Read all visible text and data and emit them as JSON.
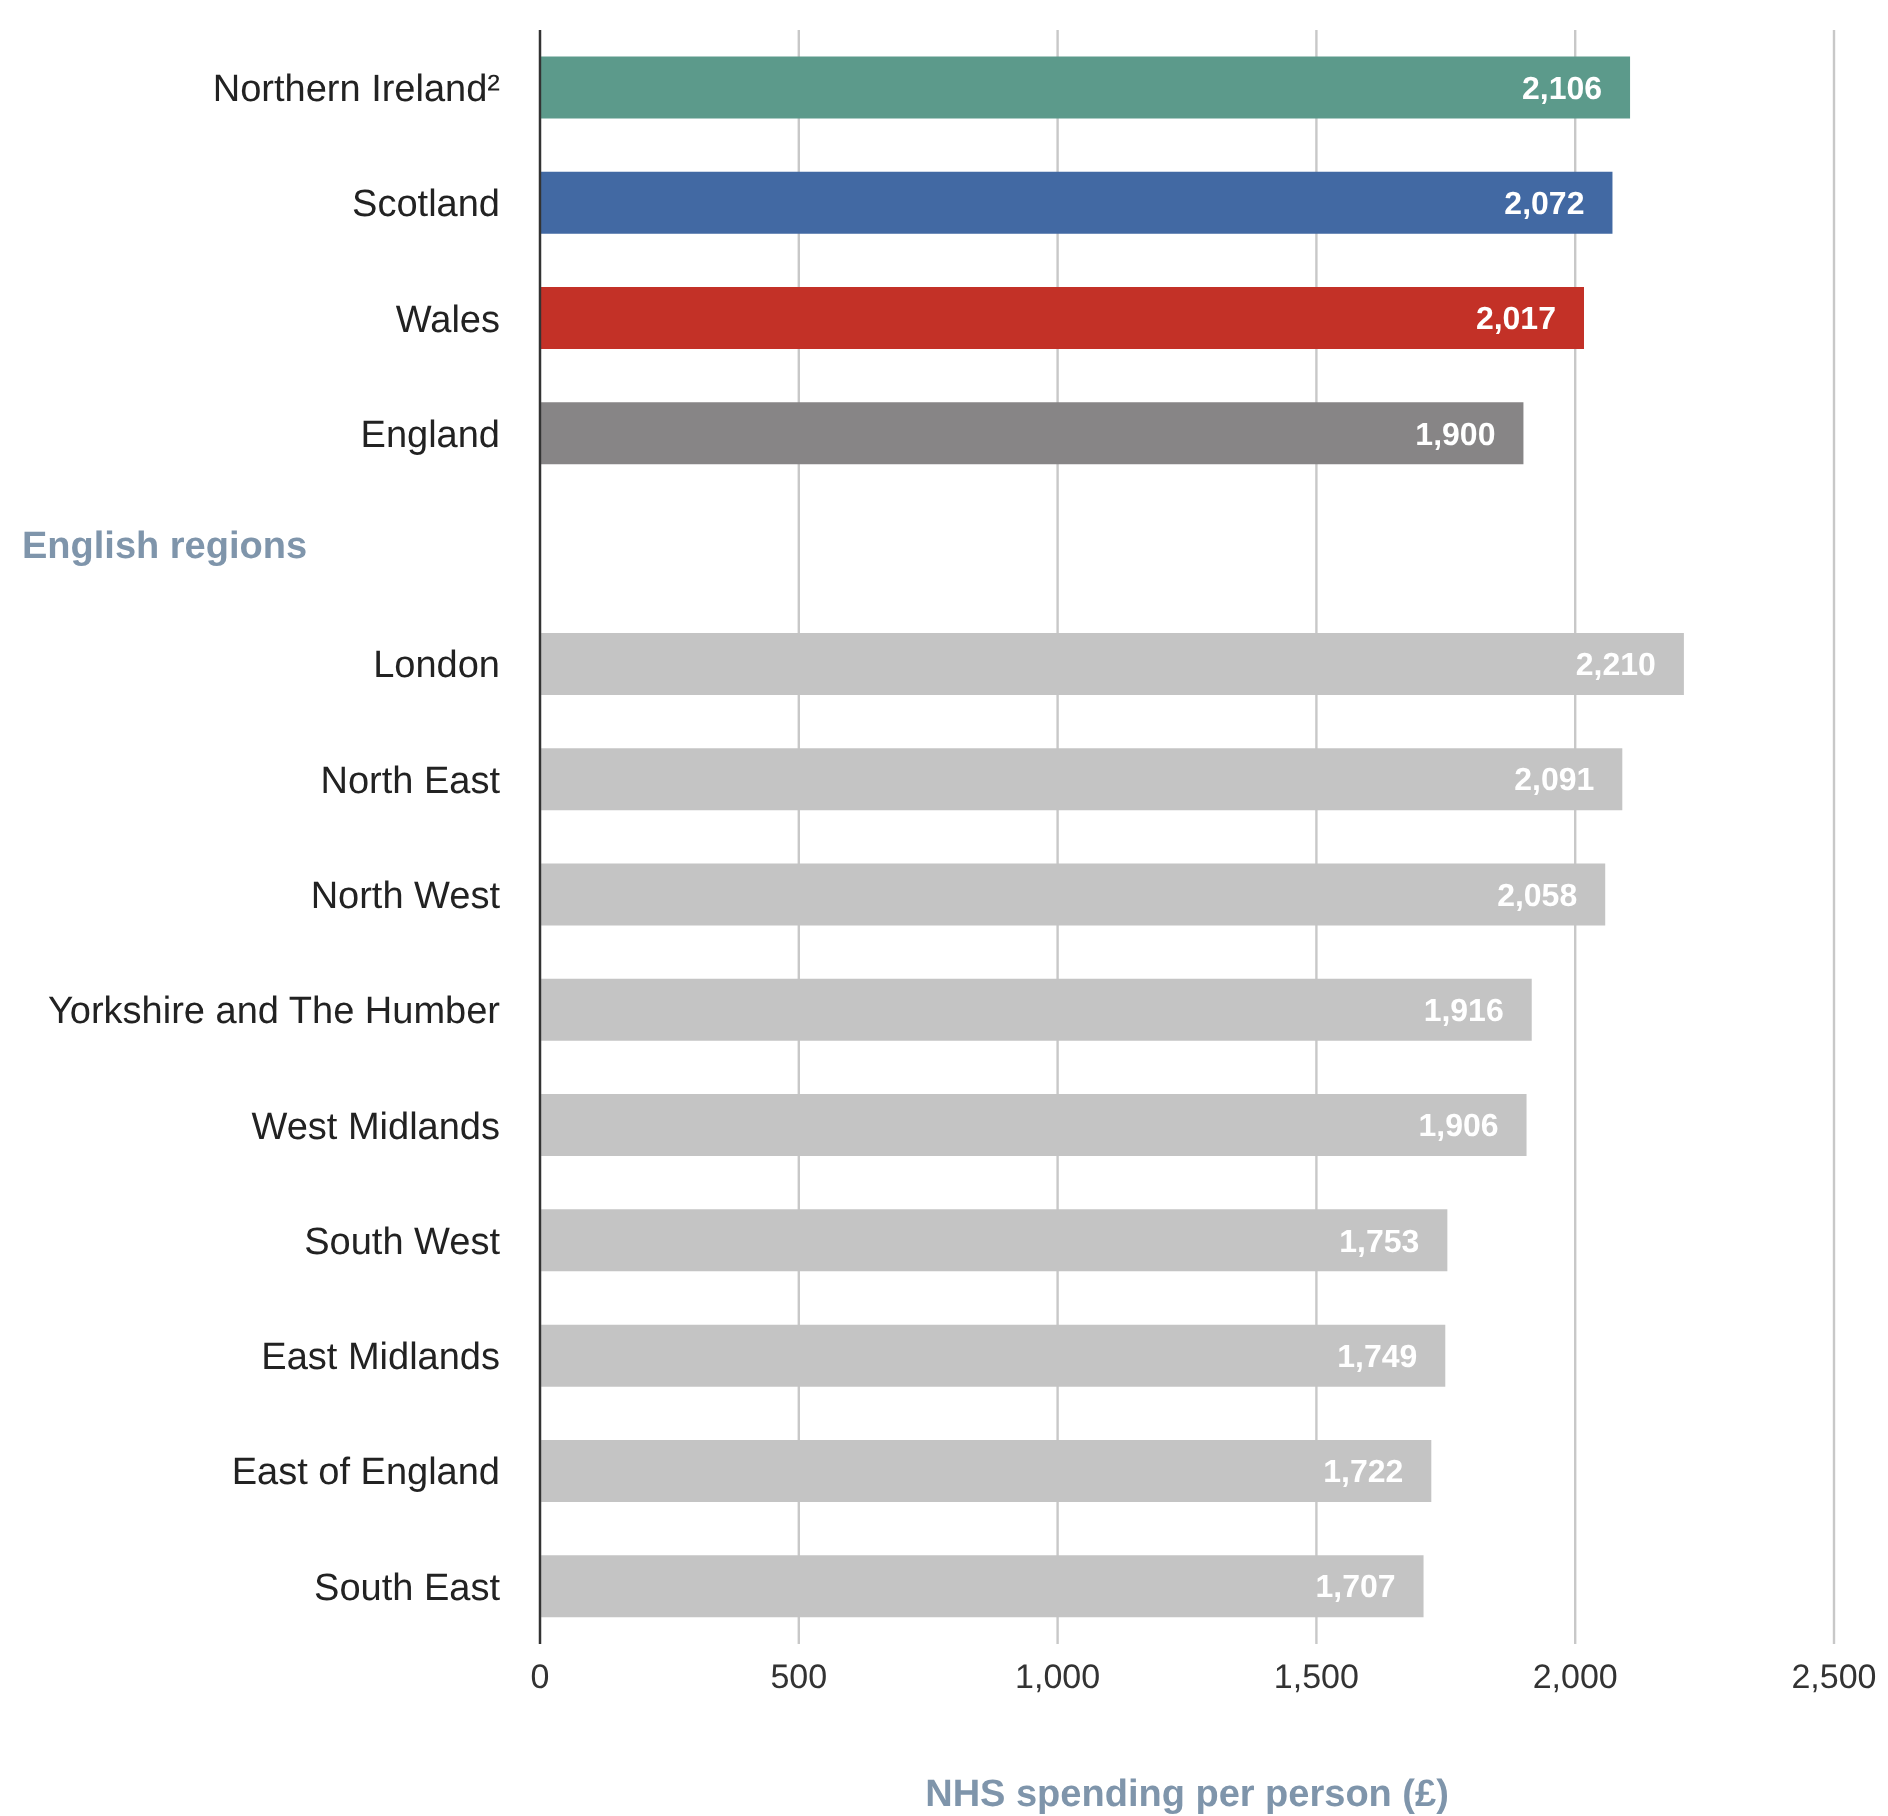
{
  "chart_data": {
    "type": "bar",
    "orientation": "horizontal",
    "categories": [
      "Northern Ireland²",
      "Scotland",
      "Wales",
      "England",
      null,
      "London",
      "North East",
      "North West",
      "Yorkshire and The Humber",
      "West Midlands",
      "South West",
      "East Midlands",
      "East of England",
      "South East"
    ],
    "values": [
      2106,
      2072,
      2017,
      1900,
      null,
      2210,
      2091,
      2058,
      1916,
      1906,
      1753,
      1749,
      1722,
      1707
    ],
    "colors": [
      "#5c9a8b",
      "#4269a3",
      "#c33127",
      "#878586",
      null,
      "#c4c4c4",
      "#c4c4c4",
      "#c4c4c4",
      "#c4c4c4",
      "#c4c4c4",
      "#c4c4c4",
      "#c4c4c4",
      "#c4c4c4",
      "#c4c4c4"
    ],
    "value_labels": [
      "2,106",
      "2,072",
      "2,017",
      "1,900",
      null,
      "2,210",
      "2,091",
      "2,058",
      "1,916",
      "1,906",
      "1,753",
      "1,749",
      "1,722",
      "1,707"
    ],
    "annotations": [
      "English regions"
    ],
    "xlabel": "NHS spending per person (£)",
    "xlim": [
      0,
      2500
    ],
    "xticks": [
      0,
      500,
      {
        "value": 1000,
        "label": "1,000"
      },
      {
        "value": 1500,
        "label": "1,500"
      },
      {
        "value": 2000,
        "label": "2,000"
      },
      {
        "value": 2500,
        "label": "2,500"
      }
    ],
    "grid": "x"
  }
}
